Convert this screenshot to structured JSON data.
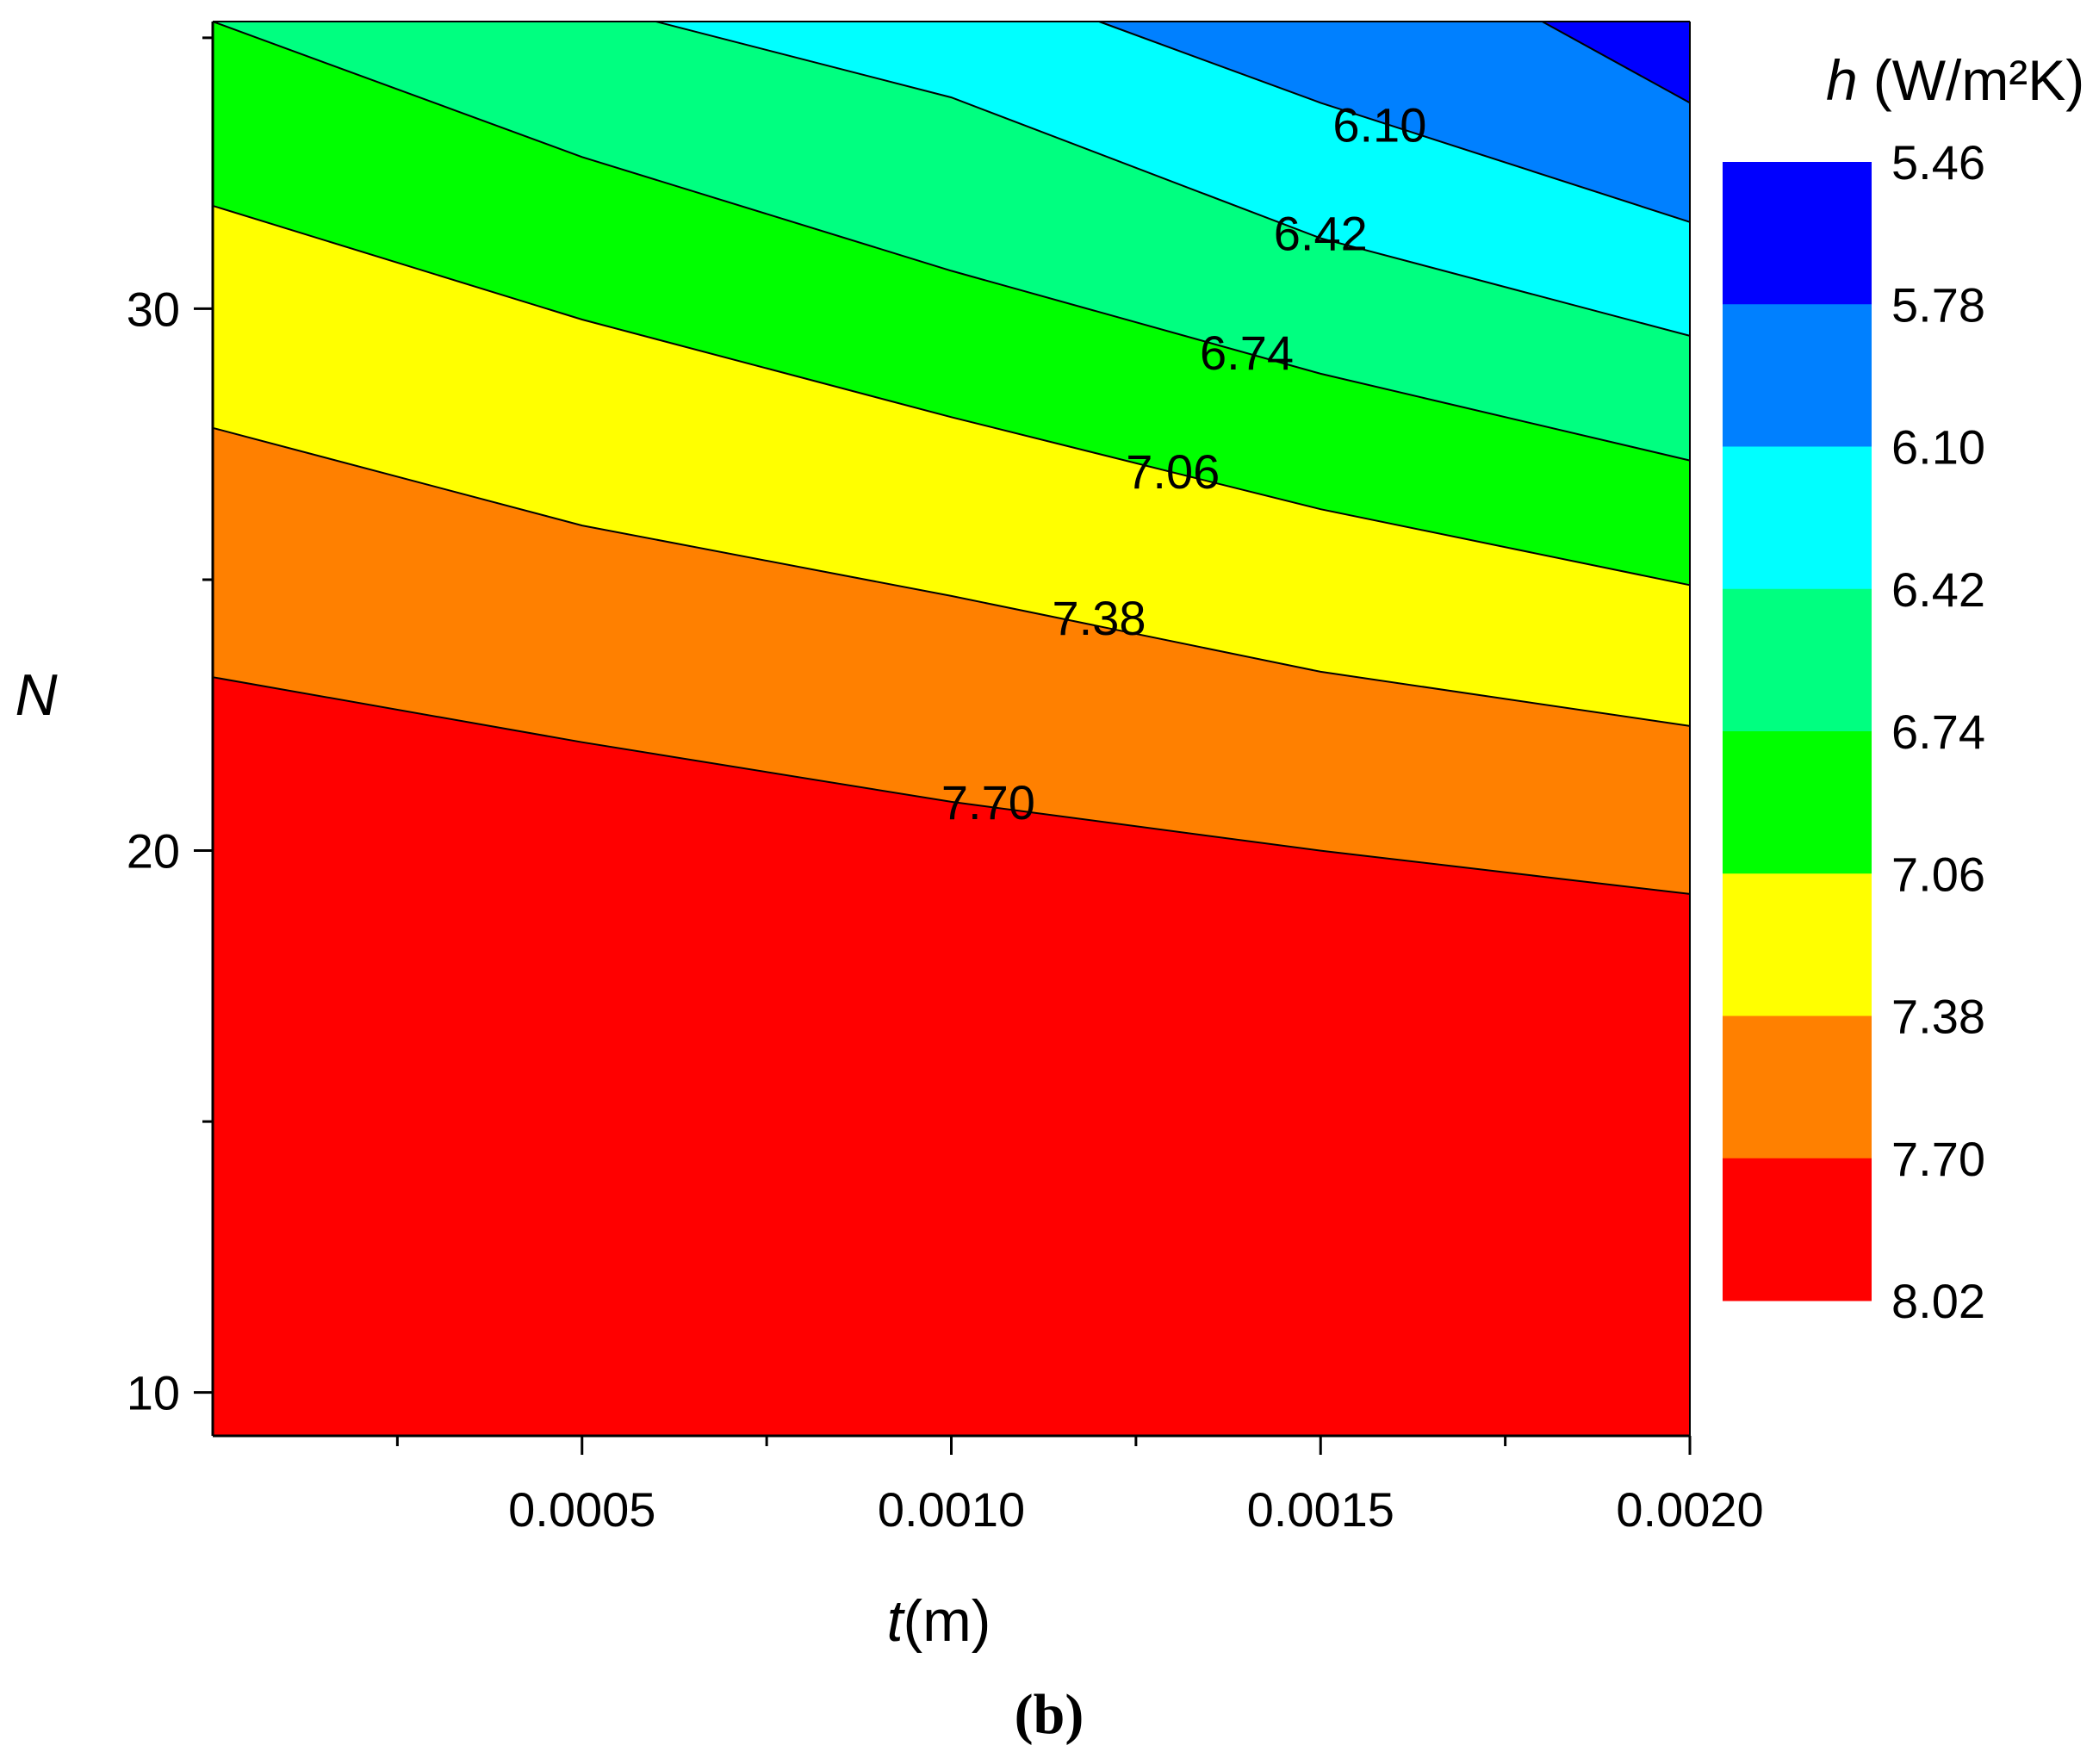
{
  "chart_data": {
    "type": "contour",
    "panel_label": "(b)",
    "xlabel": "(m)",
    "xlabel_var": "t",
    "ylabel": "N",
    "colorbar_title_var": "h",
    "colorbar_title_unit": "(W/m²K)",
    "xlim": [
      0.0,
      0.002
    ],
    "ylim": [
      9.2,
      35.3
    ],
    "x_ticks": [
      0.0005,
      0.001,
      0.0015,
      0.002
    ],
    "x_tick_labels": [
      "0.0005",
      "0.0010",
      "0.0015",
      "0.0020"
    ],
    "x_minor_ticks": [
      0.00025,
      0.00075,
      0.00125,
      0.00175
    ],
    "y_ticks": [
      10,
      20,
      30
    ],
    "y_tick_labels": [
      "10",
      "20",
      "30"
    ],
    "y_minor_ticks": [
      15,
      25,
      35
    ],
    "levels": [
      5.46,
      5.78,
      6.1,
      6.42,
      6.74,
      7.06,
      7.38,
      7.7,
      8.02
    ],
    "level_labels": [
      "5.46",
      "5.78",
      "6.10",
      "6.42",
      "6.74",
      "7.06",
      "7.38",
      "7.70",
      "8.02"
    ],
    "band_colors": [
      "#0000ff",
      "#0080ff",
      "#00ffff",
      "#00ff80",
      "#00ff00",
      "#ffff00",
      "#ff8000",
      "#ff0000"
    ],
    "contours": [
      {
        "level": 7.7,
        "label": "7.70",
        "label_at": [
          0.00105,
          20.9
        ],
        "points": [
          [
            0.0,
            23.2
          ],
          [
            0.0005,
            22.0
          ],
          [
            0.001,
            20.9
          ],
          [
            0.0015,
            20.0
          ],
          [
            0.002,
            19.2
          ]
        ]
      },
      {
        "level": 7.38,
        "label": "7.38",
        "label_at": [
          0.0012,
          24.3
        ],
        "points": [
          [
            0.0,
            27.8
          ],
          [
            0.0005,
            26.0
          ],
          [
            0.001,
            24.7
          ],
          [
            0.0015,
            23.3
          ],
          [
            0.002,
            22.3
          ]
        ]
      },
      {
        "level": 7.06,
        "label": "7.06",
        "label_at": [
          0.0013,
          27.0
        ],
        "points": [
          [
            0.0,
            31.9
          ],
          [
            0.0005,
            29.8
          ],
          [
            0.001,
            28.0
          ],
          [
            0.0015,
            26.3
          ],
          [
            0.002,
            24.9
          ]
        ]
      },
      {
        "level": 6.74,
        "label": "6.74",
        "label_at": [
          0.0014,
          29.2
        ],
        "points": [
          [
            0.0,
            35.3
          ],
          [
            0.0005,
            32.8
          ],
          [
            0.001,
            30.7
          ],
          [
            0.0015,
            28.8
          ],
          [
            0.002,
            27.2
          ]
        ]
      },
      {
        "level": 6.42,
        "label": "6.42",
        "label_at": [
          0.0015,
          31.4
        ],
        "points": [
          [
            0.0006,
            35.3
          ],
          [
            0.001,
            33.9
          ],
          [
            0.0015,
            31.3
          ],
          [
            0.002,
            29.5
          ]
        ]
      },
      {
        "level": 6.1,
        "label": "6.10",
        "label_at": [
          0.00158,
          33.4
        ],
        "points": [
          [
            0.0012,
            35.3
          ],
          [
            0.0015,
            33.8
          ],
          [
            0.002,
            31.6
          ]
        ]
      },
      {
        "level": 5.78,
        "label": "",
        "label_at": null,
        "points": [
          [
            0.0018,
            35.3
          ],
          [
            0.002,
            33.8
          ]
        ]
      }
    ]
  }
}
